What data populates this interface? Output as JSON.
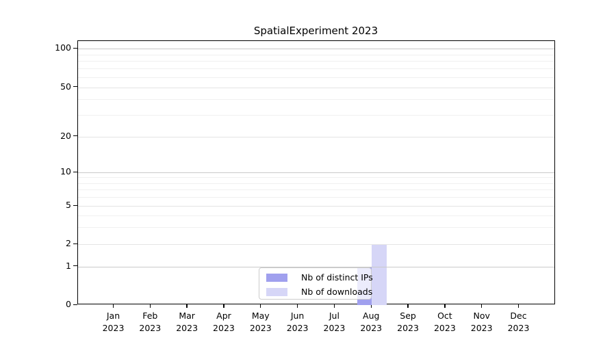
{
  "title": "SpatialExperiment 2023",
  "chart_data": {
    "type": "bar",
    "title": "SpatialExperiment 2023",
    "categories": [
      "Jan",
      "Feb",
      "Mar",
      "Apr",
      "May",
      "Jun",
      "Jul",
      "Aug",
      "Sep",
      "Oct",
      "Nov",
      "Dec"
    ],
    "category_year": "2023",
    "series": [
      {
        "name": "Nb of distinct IPs",
        "color": "#a0a0ee",
        "values": [
          0,
          0,
          0,
          0,
          0,
          0,
          0,
          1,
          0,
          0,
          0,
          0
        ]
      },
      {
        "name": "Nb of downloads",
        "color": "#d6d6f7",
        "values": [
          0,
          0,
          0,
          0,
          0,
          0,
          0,
          2,
          0,
          0,
          0,
          0
        ]
      }
    ],
    "y_axis": {
      "scale": "pseudo-log",
      "ticks": [
        0,
        1,
        2,
        5,
        10,
        20,
        50,
        100
      ],
      "tick_labels": [
        "0",
        "1",
        "2",
        "5",
        "10",
        "20",
        "50",
        "100"
      ],
      "minor_gridlines": [
        3,
        4,
        6,
        7,
        8,
        9,
        30,
        40,
        60,
        70,
        80,
        90
      ],
      "major_gridlines": [
        1,
        10,
        100
      ],
      "mid_gridlines": [
        2,
        5,
        20,
        50
      ],
      "range": [
        0,
        110
      ]
    },
    "grid": "horizontal",
    "legend": {
      "position": "lower center",
      "entries": [
        "Nb of distinct IPs",
        "Nb of downloads"
      ]
    },
    "colors": {
      "spine": "#000000",
      "grid_major": "#c9c9c9",
      "grid_mid": "#e4e4e4",
      "grid_minor": "#f0f0f0"
    }
  }
}
